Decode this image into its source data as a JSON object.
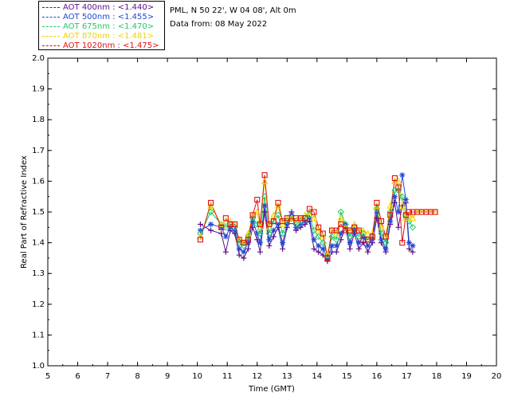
{
  "legend": [
    {
      "label": "AOT  400nm : <1.440>",
      "color": "#5a0f8c"
    },
    {
      "label": "AOT  500nm : <1.455>",
      "color": "#1f49d6"
    },
    {
      "label": "AOT  675nm : <1.470>",
      "color": "#1ec96a"
    },
    {
      "label": "AOT  870nm : <1.481>",
      "color": "#f2d200"
    },
    {
      "label": "AOT 1020nm : <1.475>",
      "color": "#e01010"
    }
  ],
  "info": {
    "site": "PML, N 50 22', W 04 08', Alt 0m",
    "date": "Data from: 08 May 2022"
  },
  "chart_data": {
    "type": "scatter",
    "title": "",
    "xlabel": "Time (GMT)",
    "ylabel": "Real Part of Refractive Index",
    "xlim": [
      5,
      20
    ],
    "ylim": [
      1.0,
      2.0
    ],
    "xticks": [
      "5",
      "6",
      "7",
      "8",
      "9",
      "10",
      "11",
      "12",
      "13",
      "14",
      "15",
      "16",
      "17",
      "18",
      "19",
      "20"
    ],
    "yticks": [
      "1.0",
      "1.1",
      "1.2",
      "1.3",
      "1.4",
      "1.5",
      "1.6",
      "1.7",
      "1.8",
      "1.9",
      "2.0"
    ],
    "x": [
      10.1,
      10.45,
      10.8,
      10.95,
      11.1,
      11.25,
      11.4,
      11.55,
      11.7,
      11.85,
      12.0,
      12.1,
      12.25,
      12.4,
      12.55,
      12.7,
      12.85,
      13.0,
      13.15,
      13.3,
      13.45,
      13.6,
      13.75,
      13.9,
      14.05,
      14.2,
      14.35,
      14.5,
      14.65,
      14.8,
      14.95,
      15.1,
      15.25,
      15.4,
      15.55,
      15.7,
      15.85,
      16.0,
      16.15,
      16.3,
      16.45,
      16.6,
      16.72,
      16.85,
      16.97,
      17.08,
      17.2,
      17.35,
      17.5,
      17.65,
      17.8,
      17.95
    ],
    "series": [
      {
        "name": "AOT  400nm : <1.440>",
        "marker": "plus",
        "color": "#5a0f8c",
        "values": [
          1.46,
          1.44,
          1.43,
          1.37,
          1.44,
          1.43,
          1.36,
          1.35,
          1.38,
          1.45,
          1.41,
          1.37,
          1.5,
          1.39,
          1.42,
          1.45,
          1.38,
          1.45,
          1.5,
          1.44,
          1.45,
          1.46,
          1.47,
          1.38,
          1.37,
          1.36,
          1.34,
          1.37,
          1.37,
          1.41,
          1.45,
          1.38,
          1.43,
          1.38,
          1.4,
          1.37,
          1.4,
          1.48,
          1.4,
          1.37,
          1.46,
          1.53,
          1.45,
          1.52,
          1.53,
          1.38,
          1.37,
          null,
          null,
          null,
          null,
          null
        ]
      },
      {
        "name": "AOT  500nm : <1.455>",
        "marker": "star",
        "color": "#1f49d6",
        "values": [
          1.44,
          1.46,
          1.45,
          1.42,
          1.45,
          1.44,
          1.38,
          1.37,
          1.4,
          1.47,
          1.43,
          1.4,
          1.52,
          1.41,
          1.44,
          1.46,
          1.4,
          1.46,
          1.49,
          1.45,
          1.46,
          1.47,
          1.48,
          1.41,
          1.39,
          1.38,
          1.35,
          1.39,
          1.39,
          1.43,
          1.46,
          1.4,
          1.44,
          1.4,
          1.42,
          1.39,
          1.41,
          1.5,
          1.41,
          1.38,
          1.47,
          1.55,
          1.5,
          1.62,
          1.54,
          1.4,
          1.39,
          null,
          null,
          null,
          null,
          null
        ]
      },
      {
        "name": "AOT  675nm : <1.470>",
        "marker": "diamond",
        "color": "#1ec96a",
        "values": [
          1.43,
          1.5,
          1.46,
          1.45,
          1.46,
          1.45,
          1.4,
          1.39,
          1.42,
          1.48,
          1.46,
          1.43,
          1.55,
          1.43,
          1.47,
          1.49,
          1.43,
          1.47,
          1.48,
          1.46,
          1.47,
          1.48,
          1.49,
          1.44,
          1.42,
          1.4,
          1.36,
          1.42,
          1.41,
          1.5,
          1.46,
          1.42,
          1.45,
          1.42,
          1.43,
          1.41,
          1.42,
          1.51,
          1.43,
          1.4,
          1.5,
          1.57,
          1.57,
          1.55,
          1.49,
          1.47,
          1.45,
          null,
          null,
          null,
          null,
          null
        ]
      },
      {
        "name": "AOT  870nm : <1.481>",
        "marker": "triangle",
        "color": "#f2d200",
        "values": [
          1.42,
          1.52,
          1.46,
          1.47,
          1.47,
          1.46,
          1.41,
          1.4,
          1.43,
          1.49,
          1.5,
          1.45,
          1.6,
          1.45,
          1.49,
          1.52,
          1.46,
          1.48,
          1.48,
          1.47,
          1.48,
          1.49,
          1.5,
          1.48,
          1.44,
          1.42,
          1.36,
          1.44,
          1.43,
          1.48,
          1.45,
          1.44,
          1.46,
          1.44,
          1.44,
          1.43,
          1.43,
          1.52,
          1.45,
          1.42,
          1.52,
          1.6,
          1.6,
          1.52,
          1.48,
          1.49,
          1.48,
          1.5,
          1.5,
          1.5,
          1.5,
          1.5
        ]
      },
      {
        "name": "AOT 1020nm : <1.475>",
        "marker": "square",
        "color": "#e01010",
        "values": [
          1.41,
          1.53,
          1.45,
          1.48,
          1.46,
          1.46,
          1.41,
          1.4,
          1.41,
          1.49,
          1.54,
          1.46,
          1.62,
          1.46,
          1.47,
          1.53,
          1.47,
          1.48,
          1.47,
          1.48,
          1.48,
          1.48,
          1.51,
          1.5,
          1.45,
          1.43,
          1.35,
          1.44,
          1.44,
          1.46,
          1.44,
          1.44,
          1.45,
          1.44,
          1.41,
          1.41,
          1.42,
          1.53,
          1.47,
          1.42,
          1.49,
          1.61,
          1.58,
          1.4,
          1.49,
          1.5,
          1.5,
          1.5,
          1.5,
          1.5,
          1.5,
          1.5
        ]
      }
    ],
    "grid": false,
    "legend_position": "top-left outside"
  }
}
